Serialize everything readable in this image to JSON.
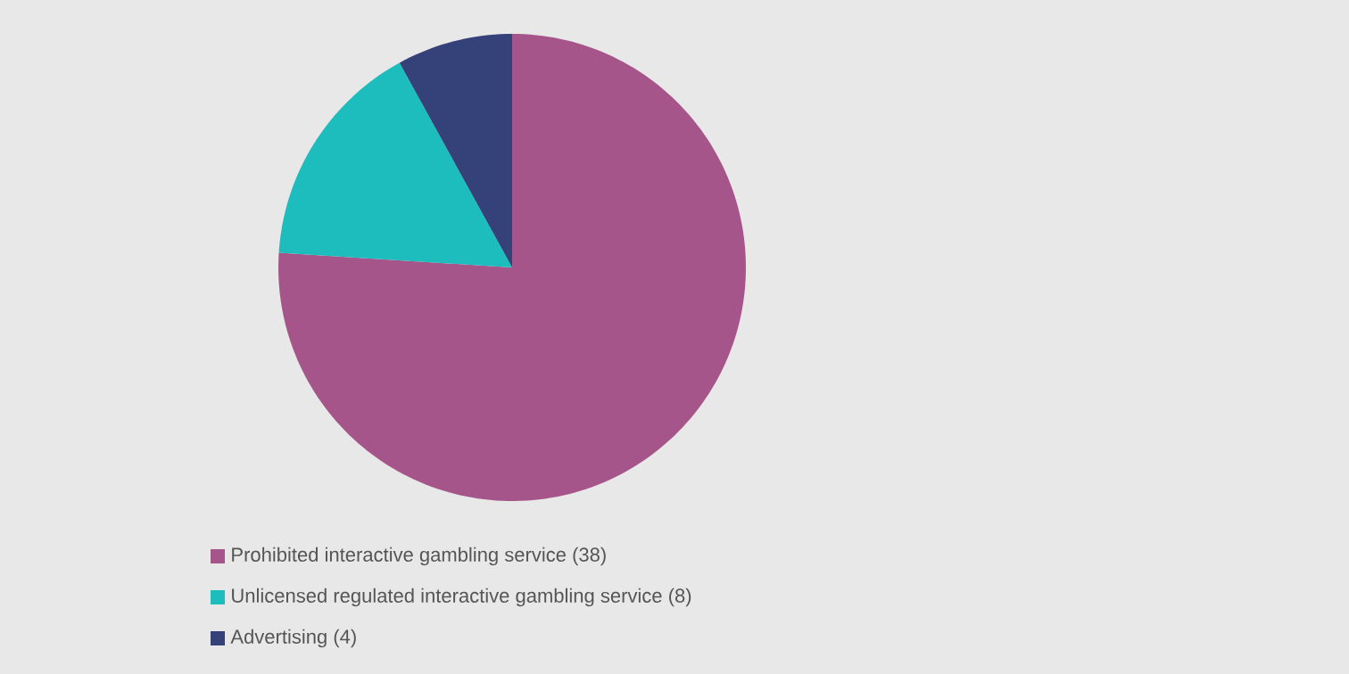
{
  "chart_data": {
    "type": "pie",
    "categories": [
      "Prohibited interactive gambling service (38)",
      "Unlicensed regulated interactive gambling service (8)",
      "Advertising (4)"
    ],
    "values": [
      38,
      8,
      4
    ],
    "colors": [
      "#a6558a",
      "#1dbdbd",
      "#35427a"
    ],
    "legend": "bottom left"
  }
}
